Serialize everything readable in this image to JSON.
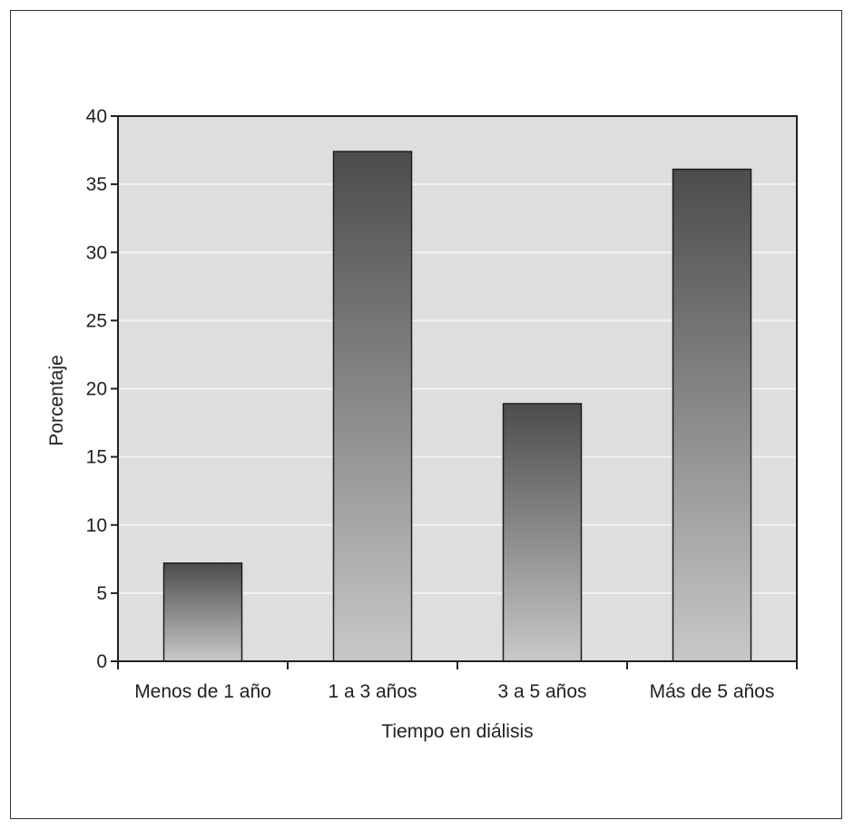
{
  "chart_data": {
    "type": "bar",
    "title": "",
    "xlabel": "Tiempo en diálisis",
    "ylabel": "Porcentaje",
    "categories": [
      "Menos de 1 año",
      "1 a 3 años",
      "3 a 5 años",
      "Más de 5 años"
    ],
    "values": [
      7.2,
      37.4,
      18.9,
      36.1
    ],
    "ylim": [
      0,
      40
    ],
    "yticks": [
      0,
      5,
      10,
      15,
      20,
      25,
      30,
      35,
      40
    ],
    "grid": true,
    "legend": "none",
    "colors": {
      "plot_background": "#dedede",
      "gridline": "#f2f2f2",
      "bar_top": "#4c4c4c",
      "bar_bottom": "#c8c8c8",
      "axis": "#222222"
    }
  }
}
